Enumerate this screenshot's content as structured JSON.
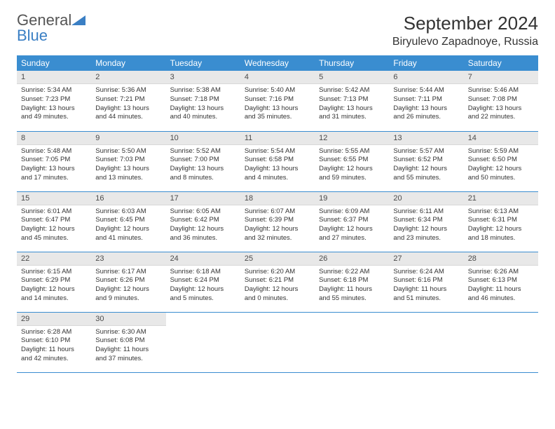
{
  "logo": {
    "word1": "General",
    "word2": "Blue",
    "accent": "#3a7fc4"
  },
  "title": "September 2024",
  "location": "Biryulevo Zapadnoye, Russia",
  "colors": {
    "header_bg": "#3a8dd0",
    "header_text": "#ffffff",
    "daynum_bg": "#e8e8e8",
    "border": "#3a8dd0",
    "body_bg": "#ffffff"
  },
  "weekdays": [
    "Sunday",
    "Monday",
    "Tuesday",
    "Wednesday",
    "Thursday",
    "Friday",
    "Saturday"
  ],
  "weeks": [
    [
      {
        "n": "1",
        "sr": "5:34 AM",
        "ss": "7:23 PM",
        "dl": "13 hours and 49 minutes."
      },
      {
        "n": "2",
        "sr": "5:36 AM",
        "ss": "7:21 PM",
        "dl": "13 hours and 44 minutes."
      },
      {
        "n": "3",
        "sr": "5:38 AM",
        "ss": "7:18 PM",
        "dl": "13 hours and 40 minutes."
      },
      {
        "n": "4",
        "sr": "5:40 AM",
        "ss": "7:16 PM",
        "dl": "13 hours and 35 minutes."
      },
      {
        "n": "5",
        "sr": "5:42 AM",
        "ss": "7:13 PM",
        "dl": "13 hours and 31 minutes."
      },
      {
        "n": "6",
        "sr": "5:44 AM",
        "ss": "7:11 PM",
        "dl": "13 hours and 26 minutes."
      },
      {
        "n": "7",
        "sr": "5:46 AM",
        "ss": "7:08 PM",
        "dl": "13 hours and 22 minutes."
      }
    ],
    [
      {
        "n": "8",
        "sr": "5:48 AM",
        "ss": "7:05 PM",
        "dl": "13 hours and 17 minutes."
      },
      {
        "n": "9",
        "sr": "5:50 AM",
        "ss": "7:03 PM",
        "dl": "13 hours and 13 minutes."
      },
      {
        "n": "10",
        "sr": "5:52 AM",
        "ss": "7:00 PM",
        "dl": "13 hours and 8 minutes."
      },
      {
        "n": "11",
        "sr": "5:54 AM",
        "ss": "6:58 PM",
        "dl": "13 hours and 4 minutes."
      },
      {
        "n": "12",
        "sr": "5:55 AM",
        "ss": "6:55 PM",
        "dl": "12 hours and 59 minutes."
      },
      {
        "n": "13",
        "sr": "5:57 AM",
        "ss": "6:52 PM",
        "dl": "12 hours and 55 minutes."
      },
      {
        "n": "14",
        "sr": "5:59 AM",
        "ss": "6:50 PM",
        "dl": "12 hours and 50 minutes."
      }
    ],
    [
      {
        "n": "15",
        "sr": "6:01 AM",
        "ss": "6:47 PM",
        "dl": "12 hours and 45 minutes."
      },
      {
        "n": "16",
        "sr": "6:03 AM",
        "ss": "6:45 PM",
        "dl": "12 hours and 41 minutes."
      },
      {
        "n": "17",
        "sr": "6:05 AM",
        "ss": "6:42 PM",
        "dl": "12 hours and 36 minutes."
      },
      {
        "n": "18",
        "sr": "6:07 AM",
        "ss": "6:39 PM",
        "dl": "12 hours and 32 minutes."
      },
      {
        "n": "19",
        "sr": "6:09 AM",
        "ss": "6:37 PM",
        "dl": "12 hours and 27 minutes."
      },
      {
        "n": "20",
        "sr": "6:11 AM",
        "ss": "6:34 PM",
        "dl": "12 hours and 23 minutes."
      },
      {
        "n": "21",
        "sr": "6:13 AM",
        "ss": "6:31 PM",
        "dl": "12 hours and 18 minutes."
      }
    ],
    [
      {
        "n": "22",
        "sr": "6:15 AM",
        "ss": "6:29 PM",
        "dl": "12 hours and 14 minutes."
      },
      {
        "n": "23",
        "sr": "6:17 AM",
        "ss": "6:26 PM",
        "dl": "12 hours and 9 minutes."
      },
      {
        "n": "24",
        "sr": "6:18 AM",
        "ss": "6:24 PM",
        "dl": "12 hours and 5 minutes."
      },
      {
        "n": "25",
        "sr": "6:20 AM",
        "ss": "6:21 PM",
        "dl": "12 hours and 0 minutes."
      },
      {
        "n": "26",
        "sr": "6:22 AM",
        "ss": "6:18 PM",
        "dl": "11 hours and 55 minutes."
      },
      {
        "n": "27",
        "sr": "6:24 AM",
        "ss": "6:16 PM",
        "dl": "11 hours and 51 minutes."
      },
      {
        "n": "28",
        "sr": "6:26 AM",
        "ss": "6:13 PM",
        "dl": "11 hours and 46 minutes."
      }
    ],
    [
      {
        "n": "29",
        "sr": "6:28 AM",
        "ss": "6:10 PM",
        "dl": "11 hours and 42 minutes."
      },
      {
        "n": "30",
        "sr": "6:30 AM",
        "ss": "6:08 PM",
        "dl": "11 hours and 37 minutes."
      },
      null,
      null,
      null,
      null,
      null
    ]
  ],
  "labels": {
    "sunrise": "Sunrise:",
    "sunset": "Sunset:",
    "daylight": "Daylight:"
  }
}
